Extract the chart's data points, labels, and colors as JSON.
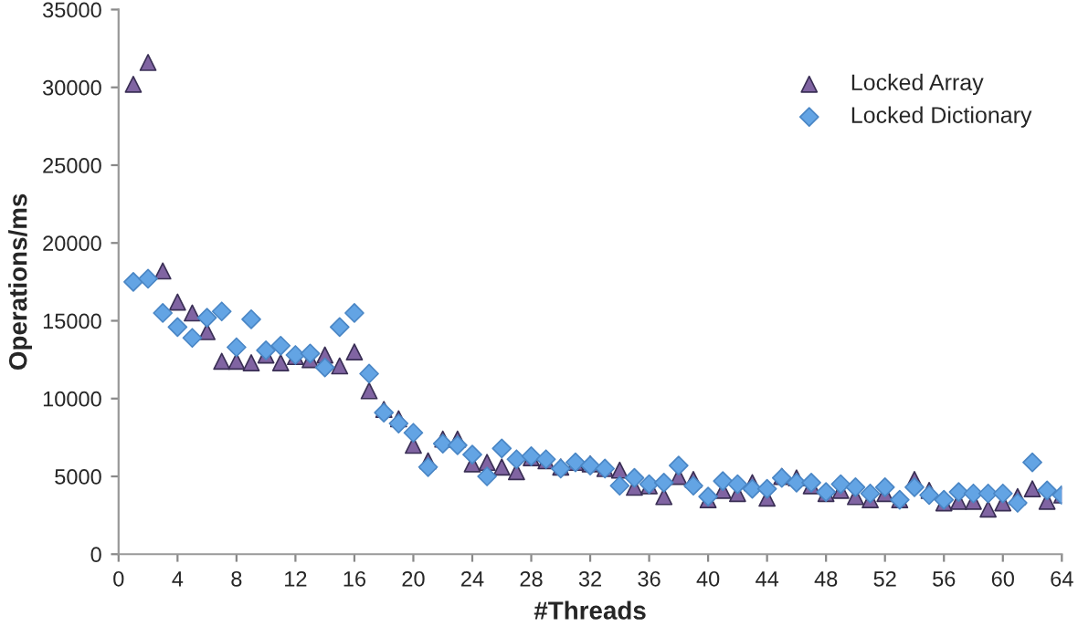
{
  "chart_data": {
    "type": "scatter",
    "xlabel": "#Threads",
    "ylabel": "Operations/ms",
    "x": [
      1,
      2,
      3,
      4,
      5,
      6,
      7,
      8,
      9,
      10,
      11,
      12,
      13,
      14,
      15,
      16,
      17,
      18,
      19,
      20,
      21,
      22,
      23,
      24,
      25,
      26,
      27,
      28,
      29,
      30,
      31,
      32,
      33,
      34,
      35,
      36,
      37,
      38,
      39,
      40,
      41,
      42,
      43,
      44,
      45,
      46,
      47,
      48,
      49,
      50,
      51,
      52,
      53,
      54,
      55,
      56,
      57,
      58,
      59,
      60,
      61,
      62,
      63,
      64
    ],
    "series": [
      {
        "name": "Locked Array",
        "color": "#8064a2",
        "marker": "triangle",
        "values": [
          30200,
          31600,
          18200,
          16200,
          15500,
          14300,
          12400,
          12400,
          12300,
          12800,
          12300,
          12700,
          12500,
          12800,
          12100,
          13000,
          10500,
          9300,
          8700,
          7000,
          6000,
          7400,
          7400,
          5800,
          5900,
          5600,
          5300,
          6200,
          6000,
          5600,
          5900,
          5800,
          5500,
          5400,
          4300,
          4400,
          3700,
          5000,
          4800,
          3500,
          4100,
          3900,
          4600,
          3600,
          5000,
          4900,
          4400,
          3900,
          4100,
          3700,
          3500,
          3900,
          3500,
          4800,
          4100,
          3300,
          3400,
          3400,
          2900,
          3300,
          3700,
          4200,
          3400,
          3800
        ]
      },
      {
        "name": "Locked Dictionary",
        "color": "#63a4e4",
        "marker": "diamond",
        "values": [
          17500,
          17700,
          15500,
          14600,
          13900,
          15200,
          15600,
          13300,
          15100,
          13100,
          13400,
          12800,
          12900,
          12000,
          14600,
          15500,
          11600,
          9100,
          8400,
          7800,
          5600,
          7100,
          7000,
          6400,
          5000,
          6800,
          6100,
          6300,
          6100,
          5500,
          5900,
          5700,
          5500,
          4400,
          4900,
          4500,
          4600,
          5700,
          4400,
          3700,
          4700,
          4500,
          4200,
          4200,
          4900,
          4600,
          4600,
          4000,
          4500,
          4300,
          3900,
          4300,
          3500,
          4300,
          3800,
          3500,
          4000,
          3900,
          3900,
          3900,
          3300,
          5900,
          4100,
          3800
        ]
      }
    ],
    "xlim": [
      0,
      64
    ],
    "xticks": [
      0,
      4,
      8,
      12,
      16,
      20,
      24,
      28,
      32,
      36,
      40,
      44,
      48,
      52,
      56,
      60,
      64
    ],
    "ylim": [
      0,
      35000
    ],
    "yticks": [
      0,
      5000,
      10000,
      15000,
      20000,
      25000,
      30000,
      35000
    ],
    "grid": false,
    "legend": "top right"
  }
}
